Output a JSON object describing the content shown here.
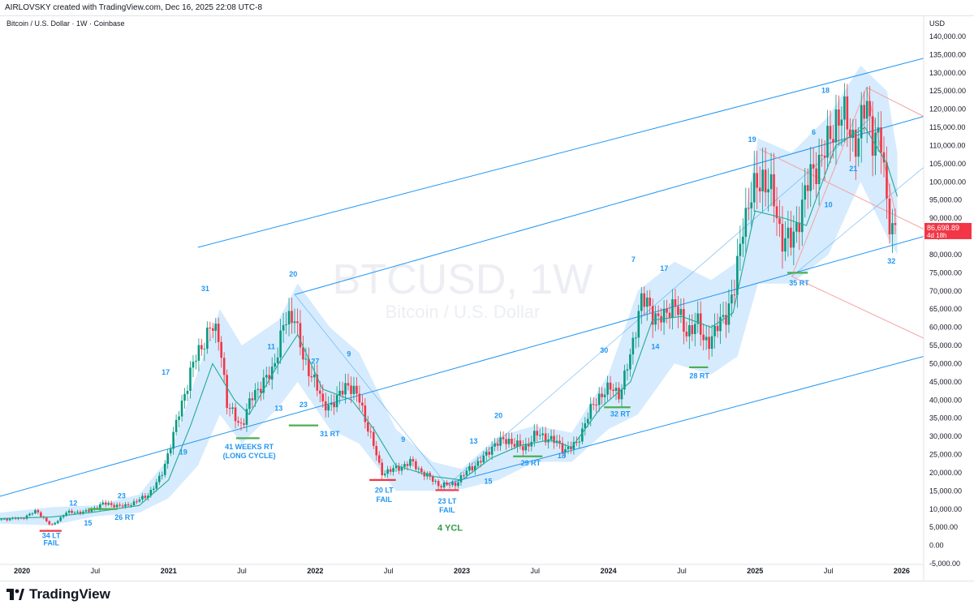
{
  "header": {
    "text": "AIRLOVSKY created with TradingView.com, Dec 16, 2025 22:08 UTC-8"
  },
  "symbol_line": "Bitcoin / U.S. Dollar · 1W · Coinbase",
  "watermark": {
    "ticker": "BTCUSD, 1W",
    "name": "Bitcoin / U.S. Dollar"
  },
  "footer": {
    "brand": "TradingView"
  },
  "colors": {
    "up": "#089981",
    "down": "#f23645",
    "ma": "#22ab94",
    "band": "#bbdefb",
    "channel": "#2196f3",
    "fan": "#f7a1a1",
    "label_blue": "#2196f3",
    "green_mark": "#4caf50",
    "red_mark": "#f23645",
    "price_tag": "#f23645"
  },
  "chart_data": {
    "type": "candlestick",
    "title": "Bitcoin / U.S. Dollar · 1W · Coinbase",
    "axis": {
      "currency": "USD",
      "ylim": [
        -5000,
        140000
      ],
      "yticks": [
        -5000,
        0,
        5000,
        10000,
        15000,
        20000,
        25000,
        30000,
        35000,
        40000,
        45000,
        50000,
        55000,
        60000,
        65000,
        70000,
        75000,
        80000,
        85000,
        90000,
        95000,
        100000,
        105000,
        110000,
        115000,
        120000,
        125000,
        130000,
        135000,
        140000
      ],
      "xlim": [
        2019.85,
        2026.15
      ]
    },
    "x_ticks": [
      {
        "label": "2020",
        "x": 2020.0,
        "bold": true
      },
      {
        "label": "Jul",
        "x": 2020.5
      },
      {
        "label": "2021",
        "x": 2021.0,
        "bold": true
      },
      {
        "label": "Jul",
        "x": 2021.5
      },
      {
        "label": "2022",
        "x": 2022.0,
        "bold": true
      },
      {
        "label": "Jul",
        "x": 2022.5
      },
      {
        "label": "2023",
        "x": 2023.0,
        "bold": true
      },
      {
        "label": "Jul",
        "x": 2023.5
      },
      {
        "label": "2024",
        "x": 2024.0,
        "bold": true
      },
      {
        "label": "Jul",
        "x": 2024.5
      },
      {
        "label": "2025",
        "x": 2025.0,
        "bold": true
      },
      {
        "label": "Jul",
        "x": 2025.5
      },
      {
        "label": "2026",
        "x": 2026.0,
        "bold": true
      }
    ],
    "last_price": {
      "value": 86698.89,
      "label": "86,698.89",
      "countdown": "4d 18h"
    },
    "price_anchors": [
      [
        2019.85,
        7200
      ],
      [
        2020.0,
        7500
      ],
      [
        2020.1,
        9500
      ],
      [
        2020.2,
        5300
      ],
      [
        2020.3,
        9000
      ],
      [
        2020.45,
        9300
      ],
      [
        2020.55,
        11500
      ],
      [
        2020.7,
        10700
      ],
      [
        2020.85,
        13500
      ],
      [
        2020.95,
        19000
      ],
      [
        2021.05,
        33000
      ],
      [
        2021.15,
        48000
      ],
      [
        2021.28,
        60000
      ],
      [
        2021.35,
        57000
      ],
      [
        2021.4,
        38000
      ],
      [
        2021.5,
        33000
      ],
      [
        2021.58,
        42000
      ],
      [
        2021.7,
        47000
      ],
      [
        2021.78,
        60000
      ],
      [
        2021.86,
        64000
      ],
      [
        2021.92,
        50000
      ],
      [
        2022.0,
        46000
      ],
      [
        2022.05,
        38000
      ],
      [
        2022.15,
        40000
      ],
      [
        2022.22,
        45000
      ],
      [
        2022.3,
        40000
      ],
      [
        2022.38,
        30000
      ],
      [
        2022.45,
        20000
      ],
      [
        2022.55,
        21000
      ],
      [
        2022.65,
        23000
      ],
      [
        2022.75,
        19500
      ],
      [
        2022.85,
        16500
      ],
      [
        2022.95,
        16800
      ],
      [
        2023.05,
        21000
      ],
      [
        2023.15,
        24000
      ],
      [
        2023.22,
        28000
      ],
      [
        2023.32,
        29000
      ],
      [
        2023.42,
        26500
      ],
      [
        2023.5,
        30500
      ],
      [
        2023.6,
        29500
      ],
      [
        2023.7,
        26500
      ],
      [
        2023.78,
        27500
      ],
      [
        2023.85,
        35000
      ],
      [
        2023.95,
        42000
      ],
      [
        2024.02,
        43000
      ],
      [
        2024.08,
        42000
      ],
      [
        2024.15,
        52000
      ],
      [
        2024.22,
        68000
      ],
      [
        2024.3,
        64000
      ],
      [
        2024.38,
        62000
      ],
      [
        2024.45,
        68000
      ],
      [
        2024.52,
        58000
      ],
      [
        2024.6,
        62000
      ],
      [
        2024.65,
        56000
      ],
      [
        2024.72,
        58000
      ],
      [
        2024.8,
        64000
      ],
      [
        2024.86,
        70000
      ],
      [
        2024.92,
        90000
      ],
      [
        2024.98,
        96000
      ],
      [
        2025.05,
        102000
      ],
      [
        2025.12,
        96000
      ],
      [
        2025.18,
        85000
      ],
      [
        2025.25,
        83000
      ],
      [
        2025.32,
        94000
      ],
      [
        2025.4,
        104000
      ],
      [
        2025.48,
        108000
      ],
      [
        2025.55,
        118000
      ],
      [
        2025.62,
        117000
      ],
      [
        2025.7,
        110000
      ],
      [
        2025.76,
        123000
      ],
      [
        2025.8,
        113000
      ],
      [
        2025.86,
        110000
      ],
      [
        2025.9,
        95000
      ],
      [
        2025.93,
        87000
      ],
      [
        2025.96,
        86700
      ]
    ],
    "ma_anchors": [
      [
        2019.85,
        7400
      ],
      [
        2020.2,
        7800
      ],
      [
        2020.5,
        9200
      ],
      [
        2020.8,
        11000
      ],
      [
        2021.0,
        18000
      ],
      [
        2021.15,
        33000
      ],
      [
        2021.3,
        50000
      ],
      [
        2021.45,
        40000
      ],
      [
        2021.55,
        36000
      ],
      [
        2021.75,
        50000
      ],
      [
        2021.88,
        58000
      ],
      [
        2022.05,
        43000
      ],
      [
        2022.25,
        40000
      ],
      [
        2022.4,
        32000
      ],
      [
        2022.55,
        22000
      ],
      [
        2022.8,
        19000
      ],
      [
        2023.0,
        18000
      ],
      [
        2023.2,
        24000
      ],
      [
        2023.4,
        27500
      ],
      [
        2023.6,
        29000
      ],
      [
        2023.75,
        27000
      ],
      [
        2023.95,
        38000
      ],
      [
        2024.15,
        45000
      ],
      [
        2024.3,
        62000
      ],
      [
        2024.5,
        63000
      ],
      [
        2024.7,
        60000
      ],
      [
        2024.85,
        64000
      ],
      [
        2025.0,
        92000
      ],
      [
        2025.2,
        90000
      ],
      [
        2025.35,
        88000
      ],
      [
        2025.55,
        110000
      ],
      [
        2025.75,
        115000
      ],
      [
        2025.9,
        105000
      ],
      [
        2025.97,
        96000
      ]
    ],
    "band_upper": [
      [
        2019.85,
        9000
      ],
      [
        2020.2,
        10500
      ],
      [
        2020.5,
        11000
      ],
      [
        2020.8,
        14000
      ],
      [
        2021.0,
        24000
      ],
      [
        2021.2,
        48000
      ],
      [
        2021.35,
        65000
      ],
      [
        2021.5,
        55000
      ],
      [
        2021.75,
        62000
      ],
      [
        2021.88,
        72000
      ],
      [
        2022.1,
        60000
      ],
      [
        2022.3,
        53000
      ],
      [
        2022.55,
        32000
      ],
      [
        2022.8,
        23000
      ],
      [
        2023.0,
        21000
      ],
      [
        2023.25,
        30000
      ],
      [
        2023.5,
        33000
      ],
      [
        2023.75,
        31000
      ],
      [
        2024.0,
        47000
      ],
      [
        2024.2,
        70000
      ],
      [
        2024.45,
        78000
      ],
      [
        2024.7,
        73000
      ],
      [
        2024.88,
        78000
      ],
      [
        2025.02,
        112000
      ],
      [
        2025.25,
        108000
      ],
      [
        2025.5,
        118000
      ],
      [
        2025.72,
        132000
      ],
      [
        2025.9,
        125000
      ],
      [
        2025.97,
        108000
      ]
    ],
    "band_lower": [
      [
        2019.85,
        6000
      ],
      [
        2020.2,
        5500
      ],
      [
        2020.5,
        8000
      ],
      [
        2020.8,
        9000
      ],
      [
        2021.0,
        13000
      ],
      [
        2021.2,
        22000
      ],
      [
        2021.35,
        36000
      ],
      [
        2021.5,
        28000
      ],
      [
        2021.75,
        38000
      ],
      [
        2021.88,
        45000
      ],
      [
        2022.1,
        32000
      ],
      [
        2022.3,
        28000
      ],
      [
        2022.55,
        15000
      ],
      [
        2022.8,
        15000
      ],
      [
        2023.0,
        15500
      ],
      [
        2023.25,
        18000
      ],
      [
        2023.5,
        23000
      ],
      [
        2023.75,
        23000
      ],
      [
        2024.0,
        32000
      ],
      [
        2024.2,
        36000
      ],
      [
        2024.45,
        50000
      ],
      [
        2024.7,
        47000
      ],
      [
        2024.88,
        52000
      ],
      [
        2025.02,
        72000
      ],
      [
        2025.25,
        72000
      ],
      [
        2025.5,
        80000
      ],
      [
        2025.72,
        100000
      ],
      [
        2025.9,
        85000
      ],
      [
        2025.97,
        80000
      ]
    ],
    "channel_lines": [
      {
        "x1": 2019.85,
        "y1": 13500,
        "x2": 2026.15,
        "y2": 85000
      },
      {
        "x1": 2021.86,
        "y1": 69000,
        "x2": 2026.15,
        "y2": 118000
      },
      {
        "x1": 2021.2,
        "y1": 82000,
        "x2": 2026.15,
        "y2": 134000
      },
      {
        "x1": 2022.9,
        "y1": 17000,
        "x2": 2026.15,
        "y2": 52000
      }
    ],
    "thin_lines": [
      {
        "x1": 2021.86,
        "y1": 69000,
        "x2": 2022.9,
        "y2": 16500
      },
      {
        "x1": 2022.9,
        "y1": 16500,
        "x2": 2025.8,
        "y2": 118000
      },
      {
        "x1": 2025.25,
        "y1": 74000,
        "x2": 2026.15,
        "y2": 104000
      }
    ],
    "fan_lines": [
      {
        "x1": 2025.03,
        "y1": 109000,
        "x2": 2026.15,
        "y2": 87000
      },
      {
        "x1": 2025.25,
        "y1": 74000,
        "x2": 2025.76,
        "y2": 126000
      },
      {
        "x1": 2025.76,
        "y1": 126000,
        "x2": 2026.15,
        "y2": 118000
      },
      {
        "x1": 2025.76,
        "y1": 126000,
        "x2": 2025.96,
        "y2": 91000
      },
      {
        "x1": 2025.25,
        "y1": 74000,
        "x2": 2026.15,
        "y2": 57000
      }
    ],
    "markers": [
      {
        "color": "green",
        "x1": 2021.46,
        "x2": 2021.62,
        "y": 29500
      },
      {
        "color": "green",
        "x1": 2021.82,
        "x2": 2022.02,
        "y": 33000
      },
      {
        "color": "green",
        "x1": 2020.45,
        "x2": 2020.65,
        "y": 10000
      },
      {
        "color": "green",
        "x1": 2023.35,
        "x2": 2023.55,
        "y": 24500
      },
      {
        "color": "green",
        "x1": 2023.97,
        "x2": 2024.15,
        "y": 38000
      },
      {
        "color": "green",
        "x1": 2024.55,
        "x2": 2024.68,
        "y": 49000
      },
      {
        "color": "green",
        "x1": 2025.22,
        "x2": 2025.36,
        "y": 75000
      },
      {
        "color": "red",
        "x1": 2020.12,
        "x2": 2020.27,
        "y": 4000
      },
      {
        "color": "red",
        "x1": 2022.37,
        "x2": 2022.55,
        "y": 18000
      },
      {
        "color": "red",
        "x1": 2022.82,
        "x2": 2022.98,
        "y": 15200
      }
    ],
    "annotations": [
      {
        "text": "34 LT",
        "x": 2020.2,
        "y": 2000,
        "color": "blue"
      },
      {
        "text": "FAIL",
        "x": 2020.2,
        "y": 0,
        "color": "blue"
      },
      {
        "text": "12",
        "x": 2020.35,
        "y": 11000,
        "color": "blue"
      },
      {
        "text": "15",
        "x": 2020.45,
        "y": 5500,
        "color": "blue"
      },
      {
        "text": "23",
        "x": 2020.68,
        "y": 13000,
        "color": "blue"
      },
      {
        "text": "26 RT",
        "x": 2020.7,
        "y": 7000,
        "color": "blue"
      },
      {
        "text": "17",
        "x": 2020.98,
        "y": 47000,
        "color": "blue"
      },
      {
        "text": "19",
        "x": 2021.1,
        "y": 25000,
        "color": "blue"
      },
      {
        "text": "31",
        "x": 2021.25,
        "y": 70000,
        "color": "blue"
      },
      {
        "text": "41 WEEKS  RT",
        "x": 2021.55,
        "y": 26500,
        "color": "blue"
      },
      {
        "text": "(LONG CYCLE)",
        "x": 2021.55,
        "y": 24000,
        "color": "blue"
      },
      {
        "text": "11",
        "x": 2021.7,
        "y": 54000,
        "color": "blue"
      },
      {
        "text": "13",
        "x": 2021.75,
        "y": 37000,
        "color": "blue"
      },
      {
        "text": "20",
        "x": 2021.85,
        "y": 74000,
        "color": "blue"
      },
      {
        "text": "27",
        "x": 2022.0,
        "y": 50000,
        "color": "blue"
      },
      {
        "text": "23",
        "x": 2021.92,
        "y": 38000,
        "color": "blue"
      },
      {
        "text": "9",
        "x": 2022.23,
        "y": 52000,
        "color": "blue"
      },
      {
        "text": "31 RT",
        "x": 2022.1,
        "y": 30000,
        "color": "blue"
      },
      {
        "text": "9",
        "x": 2022.6,
        "y": 28500,
        "color": "blue"
      },
      {
        "text": "20 LT",
        "x": 2022.47,
        "y": 14500,
        "color": "blue"
      },
      {
        "text": "FAIL",
        "x": 2022.47,
        "y": 12000,
        "color": "blue"
      },
      {
        "text": "23 LT",
        "x": 2022.9,
        "y": 11500,
        "color": "blue"
      },
      {
        "text": "FAIL",
        "x": 2022.9,
        "y": 9000,
        "color": "blue"
      },
      {
        "text": "4 YCL",
        "x": 2022.92,
        "y": 4000,
        "color": "green"
      },
      {
        "text": "13",
        "x": 2023.08,
        "y": 28000,
        "color": "blue"
      },
      {
        "text": "15",
        "x": 2023.18,
        "y": 17000,
        "color": "blue"
      },
      {
        "text": "20",
        "x": 2023.25,
        "y": 35000,
        "color": "blue"
      },
      {
        "text": "29 RT",
        "x": 2023.47,
        "y": 22000,
        "color": "blue"
      },
      {
        "text": "13",
        "x": 2023.68,
        "y": 24000,
        "color": "blue"
      },
      {
        "text": "30",
        "x": 2023.97,
        "y": 53000,
        "color": "blue"
      },
      {
        "text": "32 RT",
        "x": 2024.08,
        "y": 35500,
        "color": "blue"
      },
      {
        "text": "7",
        "x": 2024.17,
        "y": 78000,
        "color": "blue"
      },
      {
        "text": "14",
        "x": 2024.32,
        "y": 54000,
        "color": "blue"
      },
      {
        "text": "17",
        "x": 2024.38,
        "y": 75500,
        "color": "blue"
      },
      {
        "text": "28 RT",
        "x": 2024.62,
        "y": 46000,
        "color": "blue"
      },
      {
        "text": "19",
        "x": 2024.98,
        "y": 111000,
        "color": "blue"
      },
      {
        "text": "35 RT",
        "x": 2025.3,
        "y": 71500,
        "color": "blue"
      },
      {
        "text": "6",
        "x": 2025.4,
        "y": 113000,
        "color": "blue"
      },
      {
        "text": "10",
        "x": 2025.5,
        "y": 93000,
        "color": "blue"
      },
      {
        "text": "18",
        "x": 2025.48,
        "y": 124500,
        "color": "blue"
      },
      {
        "text": "21",
        "x": 2025.67,
        "y": 103000,
        "color": "blue"
      },
      {
        "text": "32",
        "x": 2025.93,
        "y": 77500,
        "color": "blue"
      }
    ]
  }
}
